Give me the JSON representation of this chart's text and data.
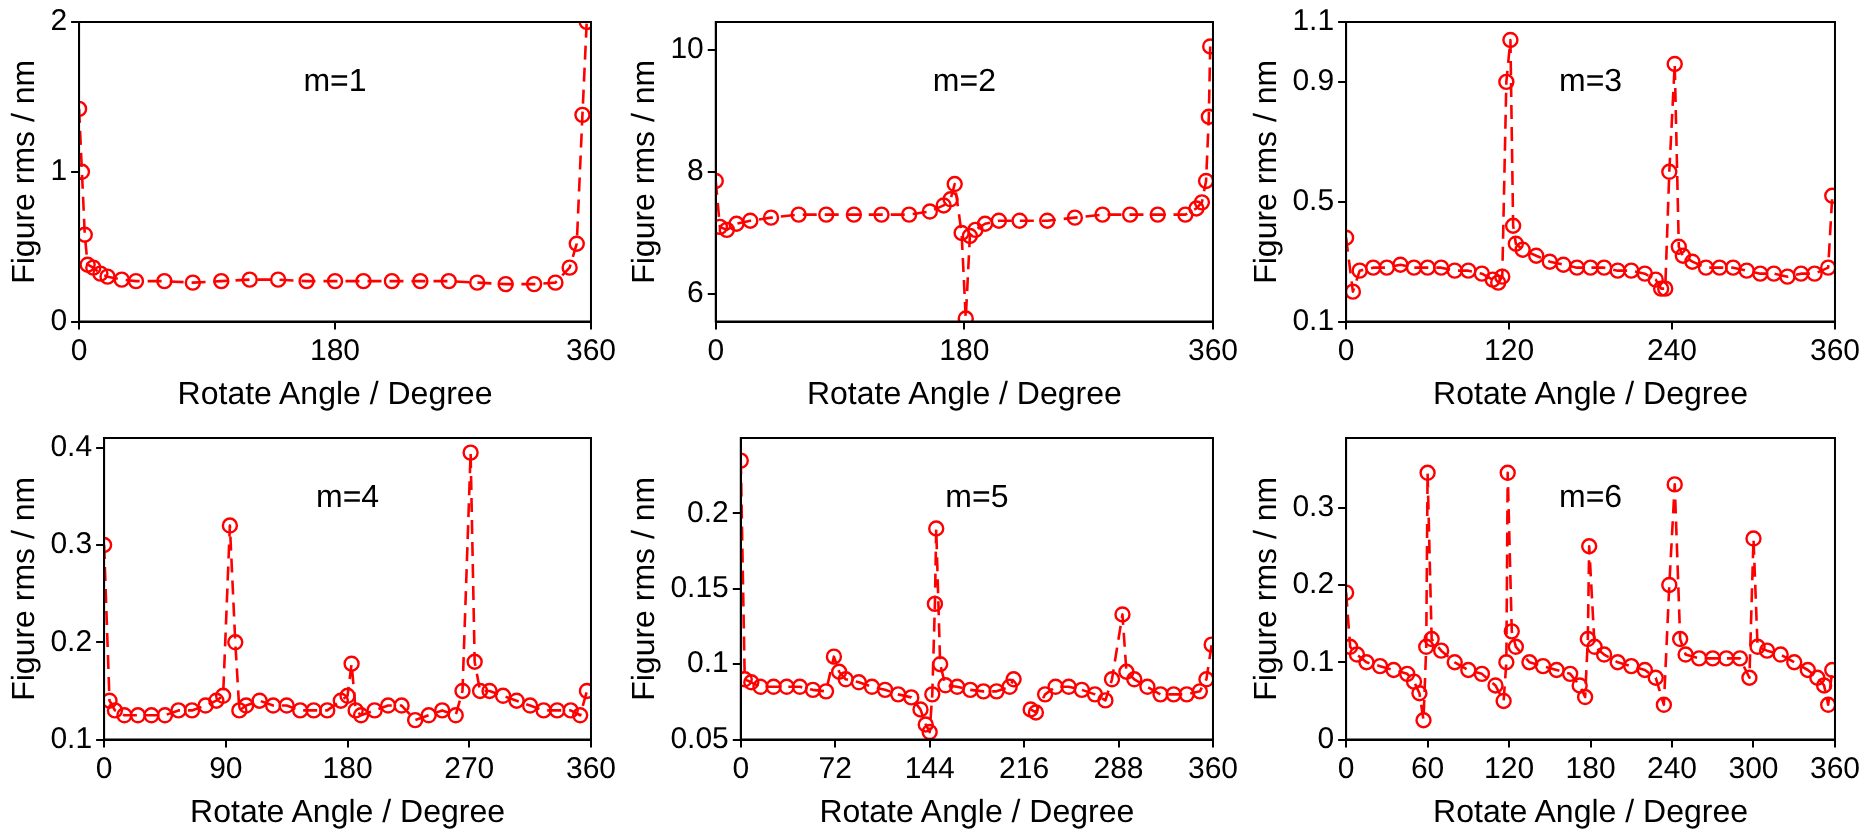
{
  "chart_data": [
    {
      "type": "line",
      "xlabel": "Rotate Angle / Degree",
      "ylabel": "Figure rms / nm",
      "annotations": [
        "m=1"
      ],
      "marker": "circle",
      "line_style": "dashed",
      "xlim": [
        0,
        360
      ],
      "xticks": [
        0,
        180,
        360
      ],
      "ylim": [
        0,
        2
      ],
      "yticks": [
        0,
        1,
        2
      ],
      "x": [
        0,
        2,
        4,
        6,
        10,
        15,
        20,
        30,
        40,
        60,
        80,
        100,
        120,
        140,
        160,
        180,
        200,
        220,
        240,
        260,
        280,
        300,
        320,
        335,
        345,
        350,
        354,
        357
      ],
      "series": [
        {
          "color": "#ff0000",
          "values": [
            1.42,
            1.0,
            0.58,
            0.38,
            0.36,
            0.32,
            0.3,
            0.28,
            0.27,
            0.27,
            0.26,
            0.27,
            0.28,
            0.28,
            0.27,
            0.27,
            0.27,
            0.27,
            0.27,
            0.27,
            0.26,
            0.25,
            0.25,
            0.26,
            0.36,
            0.52,
            1.38,
            2
          ]
        }
      ]
    },
    {
      "type": "line",
      "xlabel": "Rotate Angle / Degree",
      "ylabel": "Figure rms / nm",
      "annotations": [
        "m=2"
      ],
      "marker": "circle",
      "line_style": "dashed",
      "xlim": [
        0,
        360
      ],
      "xticks": [
        0,
        180,
        360
      ],
      "ylim": [
        5.55,
        10.45
      ],
      "yticks": [
        6,
        8,
        10
      ],
      "x": [
        0,
        3,
        8,
        15,
        25,
        40,
        60,
        80,
        100,
        120,
        140,
        155,
        165,
        170,
        173,
        178,
        181,
        184,
        188,
        195,
        205,
        220,
        240,
        260,
        280,
        300,
        320,
        340,
        348,
        352,
        355,
        357,
        358
      ],
      "series": [
        {
          "color": "#ff0000",
          "values": [
            7.85,
            7.1,
            7.05,
            7.15,
            7.2,
            7.25,
            7.3,
            7.3,
            7.3,
            7.3,
            7.3,
            7.35,
            7.45,
            7.55,
            7.8,
            7.0,
            5.6,
            6.95,
            7.05,
            7.15,
            7.2,
            7.2,
            7.2,
            7.25,
            7.3,
            7.3,
            7.3,
            7.3,
            7.4,
            7.5,
            7.85,
            8.9,
            10.05
          ]
        }
      ]
    },
    {
      "type": "line",
      "xlabel": "Rotate Angle / Degree",
      "ylabel": "Figure rms / nm",
      "annotations": [
        "m=3"
      ],
      "marker": "circle",
      "line_style": "dashed",
      "xlim": [
        0,
        360
      ],
      "xticks": [
        0,
        120,
        240,
        360
      ],
      "ylim": [
        0.1,
        1.1
      ],
      "yticks": [
        0.1,
        0.5,
        0.9,
        1.1
      ],
      "x": [
        0,
        5,
        10,
        20,
        30,
        40,
        50,
        60,
        70,
        80,
        90,
        100,
        108,
        112,
        115,
        118,
        121,
        123,
        125,
        130,
        140,
        150,
        160,
        170,
        180,
        190,
        200,
        210,
        220,
        228,
        232,
        235,
        238,
        242,
        245,
        248,
        255,
        265,
        275,
        285,
        295,
        305,
        315,
        325,
        335,
        345,
        355,
        358
      ],
      "series": [
        {
          "color": "#ff0000",
          "values": [
            0.38,
            0.2,
            0.27,
            0.28,
            0.28,
            0.29,
            0.28,
            0.28,
            0.28,
            0.27,
            0.27,
            0.26,
            0.24,
            0.23,
            0.25,
            0.9,
            1.04,
            0.42,
            0.36,
            0.34,
            0.32,
            0.3,
            0.29,
            0.28,
            0.28,
            0.28,
            0.27,
            0.27,
            0.26,
            0.24,
            0.21,
            0.21,
            0.6,
            0.96,
            0.35,
            0.32,
            0.3,
            0.28,
            0.28,
            0.28,
            0.27,
            0.26,
            0.26,
            0.25,
            0.26,
            0.26,
            0.28,
            0.52
          ]
        }
      ]
    },
    {
      "type": "line",
      "xlabel": "Rotate Angle / Degree",
      "ylabel": "Figure rms / nm",
      "annotations": [
        "m=4"
      ],
      "marker": "circle",
      "line_style": "dashed",
      "xlim": [
        0,
        360
      ],
      "xticks": [
        0,
        90,
        180,
        270,
        360
      ],
      "ylim": [
        0.1,
        0.41
      ],
      "yticks": [
        0.1,
        0.2,
        0.3,
        0.4
      ],
      "x": [
        0,
        4,
        8,
        15,
        25,
        35,
        45,
        55,
        65,
        75,
        83,
        88,
        93,
        97,
        100,
        105,
        115,
        125,
        135,
        145,
        155,
        165,
        175,
        180,
        183,
        186,
        190,
        200,
        210,
        220,
        230,
        240,
        250,
        260,
        265,
        271,
        274,
        278,
        285,
        295,
        305,
        315,
        325,
        335,
        345,
        352,
        357
      ],
      "series": [
        {
          "color": "#ff0000",
          "values": [
            0.3,
            0.14,
            0.13,
            0.125,
            0.125,
            0.125,
            0.125,
            0.13,
            0.13,
            0.135,
            0.14,
            0.145,
            0.32,
            0.2,
            0.13,
            0.135,
            0.14,
            0.135,
            0.135,
            0.13,
            0.13,
            0.13,
            0.14,
            0.145,
            0.178,
            0.13,
            0.125,
            0.13,
            0.135,
            0.135,
            0.12,
            0.125,
            0.13,
            0.125,
            0.15,
            0.395,
            0.18,
            0.15,
            0.15,
            0.145,
            0.14,
            0.135,
            0.13,
            0.13,
            0.13,
            0.125,
            0.15
          ]
        }
      ]
    },
    {
      "type": "line",
      "xlabel": "Rotate Angle / Degree",
      "ylabel": "Figure rms / nm",
      "annotations": [
        "m=5"
      ],
      "marker": "circle",
      "line_style": "dashed",
      "xlim": [
        0,
        360
      ],
      "xticks": [
        0,
        72,
        144,
        216,
        288,
        360
      ],
      "ylim": [
        0.05,
        0.25
      ],
      "yticks": [
        0.05,
        0.1,
        0.15,
        0.2
      ],
      "x": [
        0,
        3,
        8,
        15,
        25,
        35,
        45,
        55,
        65,
        71,
        75,
        80,
        90,
        100,
        110,
        120,
        130,
        137,
        141,
        144,
        146,
        148,
        149,
        152,
        156,
        165,
        175,
        185,
        195,
        205,
        208,
        209,
        219,
        221,
        225,
        232,
        240,
        250,
        260,
        270,
        278,
        283,
        291,
        294,
        300,
        310,
        320,
        330,
        340,
        350,
        355,
        359
      ],
      "series": [
        {
          "color": "#ff0000",
          "values": [
            0.235,
            0.09,
            0.088,
            0.085,
            0.085,
            0.085,
            0.085,
            0.083,
            0.082,
            0.105,
            0.095,
            0.09,
            0.088,
            0.085,
            0.083,
            0.08,
            0.078,
            0.07,
            0.06,
            0.055,
            0.08,
            0.14,
            0.19,
            0.1,
            0.086,
            0.085,
            0.083,
            0.082,
            0.082,
            0.085,
            0.09,
            null,
            null,
            0.07,
            0.068,
            0.08,
            0.085,
            0.085,
            0.083,
            0.08,
            0.076,
            0.09,
            0.133,
            0.095,
            0.09,
            0.085,
            0.08,
            0.08,
            0.08,
            0.082,
            0.09,
            0.113
          ]
        }
      ]
    },
    {
      "type": "line",
      "xlabel": "Rotate Angle / Degree",
      "ylabel": "Figure rms / nm",
      "annotations": [
        "m=6"
      ],
      "marker": "circle",
      "line_style": "dashed",
      "xlim": [
        0,
        360
      ],
      "xticks": [
        0,
        60,
        120,
        180,
        240,
        300,
        360
      ],
      "ylim": [
        0,
        0.39
      ],
      "yticks": [
        0,
        0.1,
        0.2,
        0.3
      ],
      "x": [
        0,
        3,
        8,
        15,
        25,
        35,
        45,
        50,
        54,
        57,
        59,
        60,
        63,
        70,
        80,
        90,
        100,
        110,
        116,
        118,
        119,
        122,
        125,
        135,
        145,
        155,
        165,
        172,
        176,
        178,
        179,
        183,
        190,
        200,
        210,
        220,
        228,
        234,
        238,
        242,
        246,
        250,
        260,
        270,
        280,
        290,
        297,
        300,
        303,
        310,
        320,
        330,
        340,
        347,
        352,
        355,
        358
      ],
      "series": [
        {
          "color": "#ff0000",
          "values": [
            0.19,
            0.12,
            0.11,
            0.1,
            0.095,
            0.09,
            0.085,
            0.075,
            0.06,
            0.025,
            0.12,
            0.345,
            0.13,
            0.115,
            0.1,
            0.09,
            0.085,
            0.07,
            0.05,
            0.1,
            0.345,
            0.14,
            0.12,
            0.1,
            0.095,
            0.09,
            0.085,
            0.07,
            0.055,
            0.13,
            0.25,
            0.12,
            0.11,
            0.1,
            0.095,
            0.09,
            0.08,
            0.045,
            0.2,
            0.33,
            0.13,
            0.11,
            0.105,
            0.105,
            0.105,
            0.105,
            0.08,
            0.26,
            0.12,
            0.115,
            0.11,
            0.1,
            0.09,
            0.08,
            0.07,
            0.045,
            0.09
          ]
        }
      ]
    }
  ]
}
